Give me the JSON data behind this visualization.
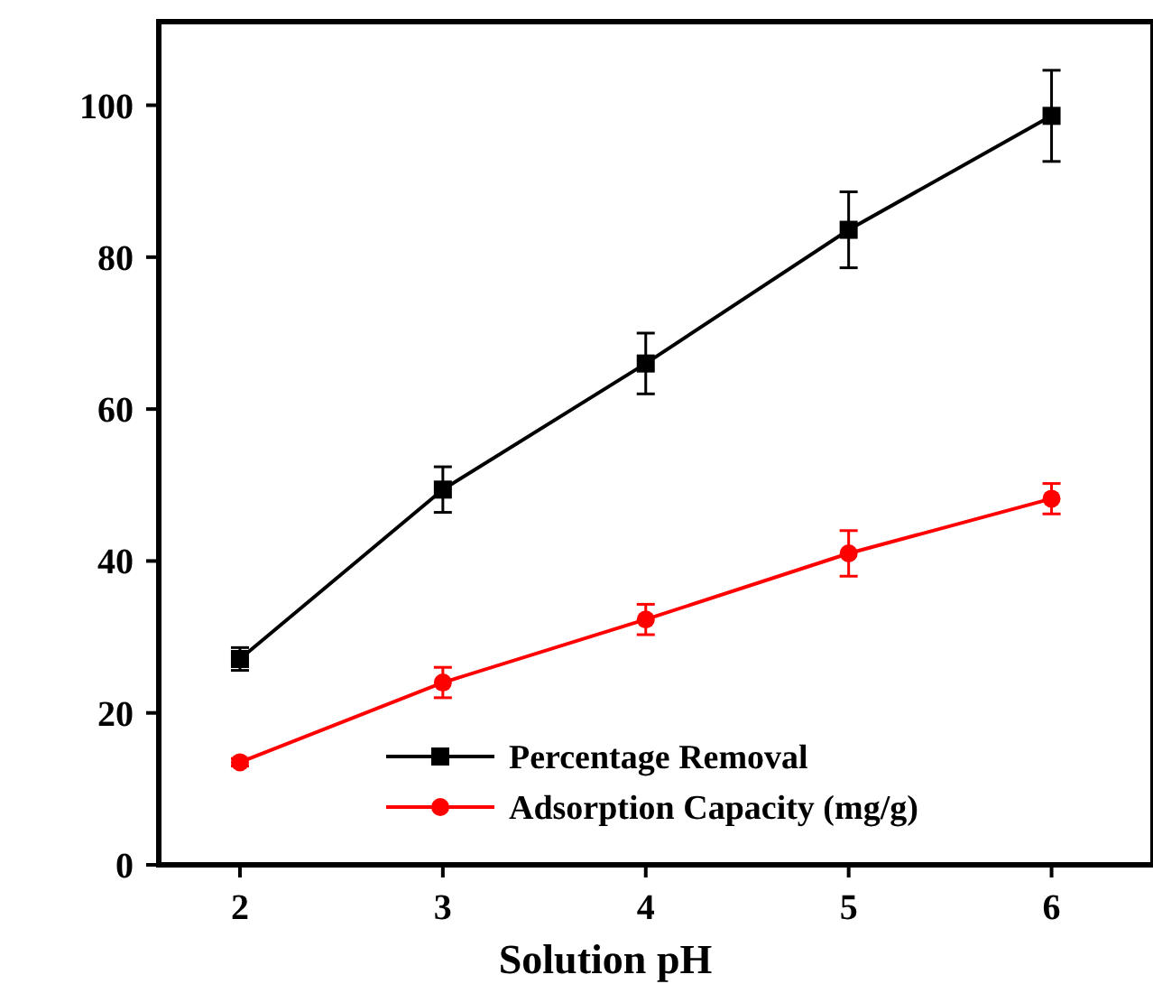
{
  "chart_data": {
    "type": "line",
    "xlabel": "Solution pH",
    "x": [
      2,
      3,
      4,
      5,
      6
    ],
    "series": [
      {
        "name": "Percentage Removal",
        "color": "#000000",
        "marker": "square",
        "values": [
          27.1,
          49.4,
          66,
          83.6,
          98.6
        ],
        "errors": [
          1.5,
          3,
          4,
          5,
          6
        ]
      },
      {
        "name": "Adsorption Capacity (mg/g)",
        "color": "#ff0000",
        "marker": "circle",
        "values": [
          13.5,
          24,
          32.3,
          41,
          48.2
        ],
        "errors": [
          0.5,
          2,
          2,
          3,
          2
        ]
      }
    ],
    "xlim": [
      1.6,
      6.5
    ],
    "xticks": [
      2,
      3,
      4,
      5,
      6
    ],
    "ylim": [
      0,
      111
    ],
    "yticks": [
      0,
      20,
      40,
      60,
      80,
      100
    ],
    "grid": false,
    "legend": "bottom right",
    "line_style": "solid"
  }
}
